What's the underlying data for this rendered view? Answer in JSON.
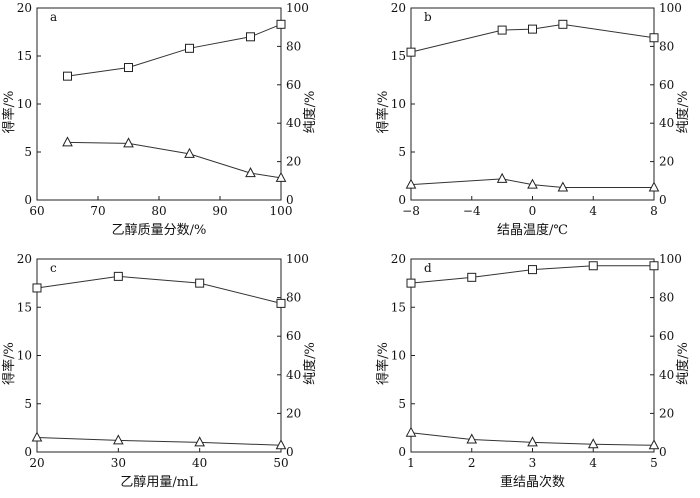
{
  "chart_data": [
    {
      "type": "line",
      "panel_label": "a",
      "xlabel": "乙醇质量分数/%",
      "ylabel_left": "得率/%",
      "ylabel_right": "纯度/%",
      "xlim": [
        60,
        100
      ],
      "xticks": [
        60,
        70,
        80,
        90,
        100
      ],
      "xtick_labels": [
        "60",
        "70",
        "80",
        "90",
        "100"
      ],
      "ylim_left": [
        0,
        20
      ],
      "yticks_left": [
        0,
        5,
        10,
        15,
        20
      ],
      "ylim_right": [
        0,
        100
      ],
      "yticks_right": [
        0,
        20,
        40,
        60,
        80,
        100
      ],
      "series": [
        {
          "marker": "square",
          "axis": "right",
          "x": [
            65,
            75,
            85,
            95,
            100
          ],
          "values": [
            64.5,
            69,
            79,
            85,
            91.5
          ]
        },
        {
          "marker": "triangle",
          "axis": "left",
          "x": [
            65,
            75,
            85,
            95,
            100
          ],
          "values": [
            6.0,
            5.9,
            4.8,
            2.8,
            2.3
          ]
        }
      ]
    },
    {
      "type": "line",
      "panel_label": "b",
      "xlabel": "结晶温度/℃",
      "ylabel_left": "得率/%",
      "ylabel_right": "纯度/%",
      "xlim": [
        -8,
        8
      ],
      "xticks": [
        -8,
        -4,
        0,
        4,
        8
      ],
      "xtick_labels": [
        "−8",
        "−4",
        "0",
        "4",
        "8"
      ],
      "ylim_left": [
        0,
        20
      ],
      "yticks_left": [
        0,
        5,
        10,
        15,
        20
      ],
      "ylim_right": [
        0,
        100
      ],
      "yticks_right": [
        0,
        20,
        40,
        60,
        80,
        100
      ],
      "series": [
        {
          "marker": "square",
          "axis": "right",
          "x": [
            -8,
            -2,
            0,
            2,
            8
          ],
          "values": [
            77,
            88.5,
            89,
            91.5,
            84.5
          ]
        },
        {
          "marker": "triangle",
          "axis": "left",
          "x": [
            -8,
            -2,
            0,
            2,
            8
          ],
          "values": [
            1.6,
            2.2,
            1.6,
            1.3,
            1.3
          ]
        }
      ]
    },
    {
      "type": "line",
      "panel_label": "c",
      "xlabel": "乙醇用量/mL",
      "ylabel_left": "得率/%",
      "ylabel_right": "纯度/%",
      "xlim": [
        20,
        50
      ],
      "xticks": [
        20,
        30,
        40,
        50
      ],
      "xtick_labels": [
        "20",
        "30",
        "40",
        "50"
      ],
      "ylim_left": [
        0,
        20
      ],
      "yticks_left": [
        0,
        5,
        10,
        15,
        20
      ],
      "ylim_right": [
        0,
        100
      ],
      "yticks_right": [
        0,
        20,
        40,
        60,
        80,
        100
      ],
      "series": [
        {
          "marker": "square",
          "axis": "right",
          "x": [
            20,
            30,
            40,
            50
          ],
          "values": [
            85,
            91,
            87.5,
            77
          ]
        },
        {
          "marker": "triangle",
          "axis": "left",
          "x": [
            20,
            30,
            40,
            50
          ],
          "values": [
            1.5,
            1.2,
            1.0,
            0.7
          ]
        }
      ]
    },
    {
      "type": "line",
      "panel_label": "d",
      "xlabel": "重结晶次数",
      "ylabel_left": "得率/%",
      "ylabel_right": "纯度/%",
      "xlim": [
        1,
        5
      ],
      "xticks": [
        1,
        2,
        3,
        4,
        5
      ],
      "xtick_labels": [
        "1",
        "2",
        "3",
        "4",
        "5"
      ],
      "ylim_left": [
        0,
        20
      ],
      "yticks_left": [
        0,
        5,
        10,
        15,
        20
      ],
      "ylim_right": [
        0,
        100
      ],
      "yticks_right": [
        0,
        20,
        40,
        60,
        80,
        100
      ],
      "series": [
        {
          "marker": "square",
          "axis": "right",
          "x": [
            1,
            2,
            3,
            4,
            5
          ],
          "values": [
            87.5,
            90.5,
            94.5,
            96.5,
            96.5
          ]
        },
        {
          "marker": "triangle",
          "axis": "left",
          "x": [
            1,
            2,
            3,
            4,
            5
          ],
          "values": [
            2.0,
            1.3,
            1.0,
            0.8,
            0.7
          ]
        }
      ]
    }
  ]
}
